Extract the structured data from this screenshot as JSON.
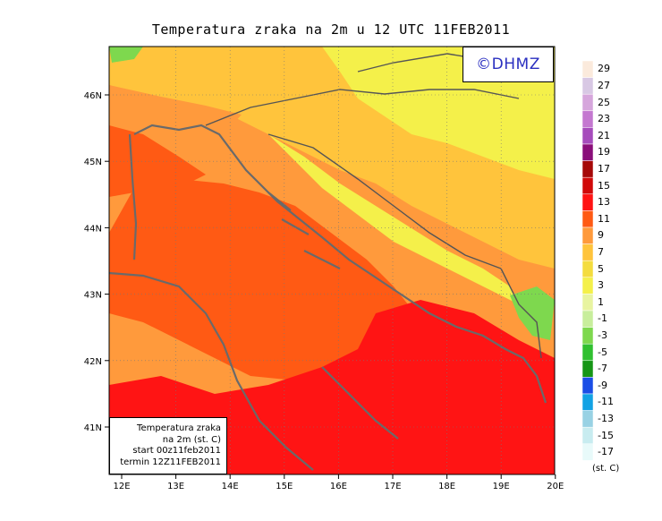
{
  "title": "Temperatura zraka na 2m u 12 UTC 11FEB2011",
  "logo": "©DHMZ",
  "info_box": {
    "line1": "Temperatura zraka",
    "line2": "na 2m (st. C)",
    "line3": "start 00z11feb2011",
    "line4": "termin 12Z11FEB2011"
  },
  "axes": {
    "x_ticks": [
      "12E",
      "13E",
      "14E",
      "15E",
      "16E",
      "17E",
      "18E",
      "19E",
      "20E"
    ],
    "y_ticks": [
      "46N",
      "45N",
      "44N",
      "43N",
      "42N",
      "41N"
    ]
  },
  "colorbar": {
    "unit": "(st. C)",
    "labels": [
      "29",
      "27",
      "25",
      "23",
      "21",
      "19",
      "17",
      "15",
      "13",
      "11",
      "9",
      "7",
      "5",
      "3",
      "1",
      "-1",
      "-3",
      "-5",
      "-7",
      "-9",
      "-11",
      "-13",
      "-15",
      "-17"
    ],
    "colors": [
      "#fbeadc",
      "#d8c8e4",
      "#d6a6dc",
      "#c478d0",
      "#a64cbc",
      "#8a0e7a",
      "#a60808",
      "#d10a0a",
      "#ff1414",
      "#ff5a14",
      "#ff9a3c",
      "#ffc43c",
      "#f4dc3e",
      "#f4f04a",
      "#e8f4a0",
      "#c8ee9c",
      "#7ed84e",
      "#30c030",
      "#169616",
      "#1a4ee6",
      "#12a2e4",
      "#98d2e4",
      "#c8ecf0",
      "#e8fafa"
    ]
  },
  "map_colors": {
    "hot": "#ff1414",
    "warm": "#ff5a14",
    "mild": "#ff9a3c",
    "cool": "#ffc43c",
    "cold": "#f4dc3e",
    "very_cold": "#f4f04a",
    "pale": "#e8f4a0",
    "frost": "#7ed84e",
    "coast": "#6a6a6a"
  }
}
